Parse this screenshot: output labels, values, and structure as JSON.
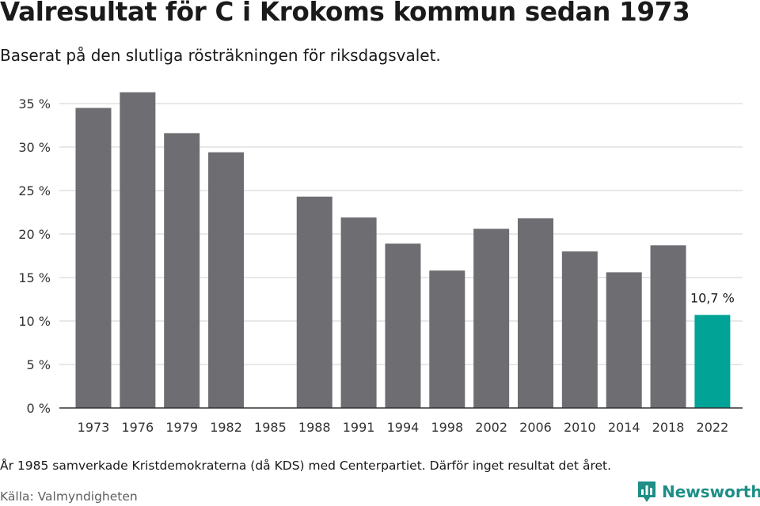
{
  "header": {
    "title": "Valresultat för C i Krokoms kommun sedan 1973",
    "subtitle": "Baserat på den slutliga rösträkningen för riksdagsvalet."
  },
  "footer": {
    "note": "År 1985 samverkade Kristdemokraterna (då KDS) med Centerpartiet. Därför inget resultat det året.",
    "source": "Källa: Valmyndigheten",
    "brand": "Newsworthy",
    "brand_icon": "newsworthy-logo-icon"
  },
  "colors": {
    "bar": "#6e6d72",
    "highlight": "#00a396",
    "grid": "#d9d9d9",
    "axis": "#333333",
    "brand": "#1d8f87"
  },
  "chart_data": {
    "type": "bar",
    "categories": [
      "1973",
      "1976",
      "1979",
      "1982",
      "1985",
      "1988",
      "1991",
      "1994",
      "1998",
      "2002",
      "2006",
      "2010",
      "2014",
      "2018",
      "2022"
    ],
    "values": [
      34.5,
      36.3,
      31.6,
      29.4,
      null,
      24.3,
      21.9,
      18.9,
      15.8,
      20.6,
      21.8,
      18.0,
      15.6,
      18.7,
      10.7
    ],
    "highlight_index": 14,
    "data_labels": [
      {
        "index": 14,
        "text": "10,7 %"
      }
    ],
    "y_ticks": [
      0,
      5,
      10,
      15,
      20,
      25,
      30,
      35
    ],
    "y_tick_labels": [
      "0 %",
      "5 %",
      "10 %",
      "15 %",
      "20 %",
      "25 %",
      "30 %",
      "35 %"
    ],
    "ylim": [
      0,
      35
    ],
    "grid": true,
    "legend": "none",
    "xlabel": "",
    "ylabel": ""
  }
}
